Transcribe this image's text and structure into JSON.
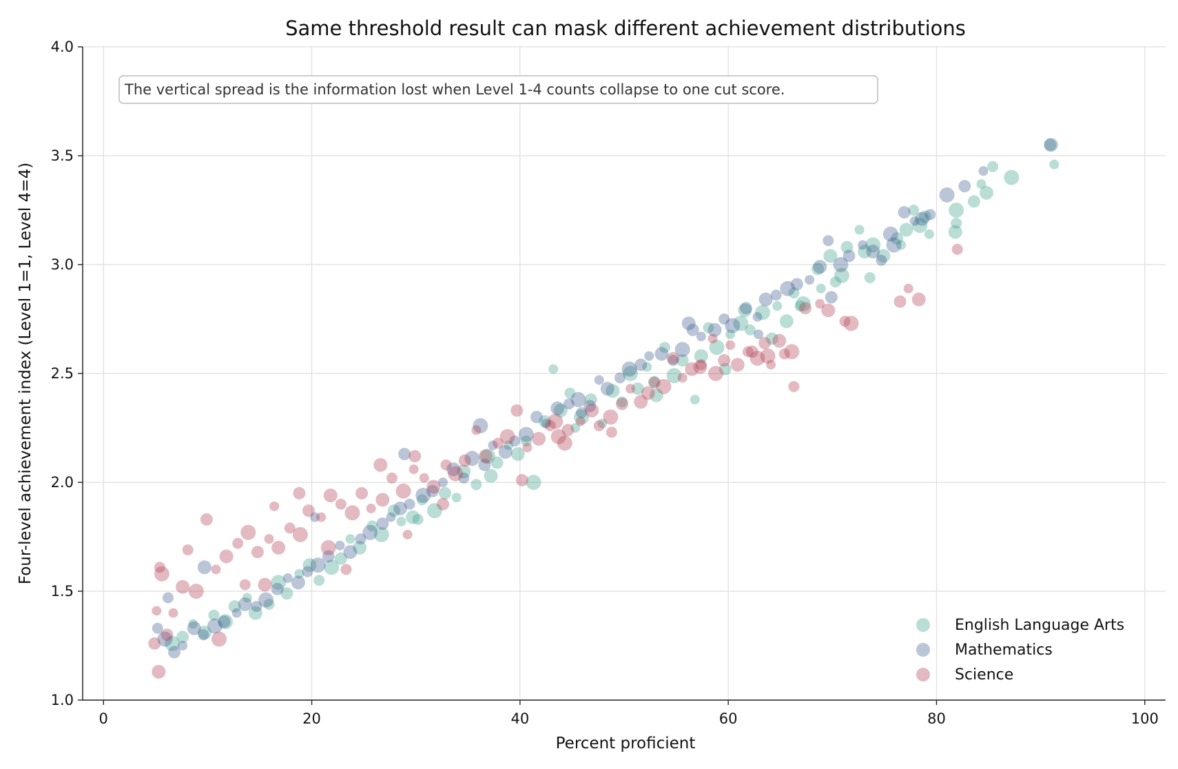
{
  "chart_data": {
    "type": "scatter",
    "title": "Same threshold result can mask different achievement distributions",
    "xlabel": "Percent proficient",
    "ylabel": "Four-level achievement index (Level 1=1, Level 4=4)",
    "xlim": [
      -2,
      102
    ],
    "ylim": [
      1.0,
      4.0
    ],
    "xticks": [
      0,
      20,
      40,
      60,
      80,
      100
    ],
    "yticks": [
      1.0,
      1.5,
      2.0,
      2.5,
      3.0,
      3.5,
      4.0
    ],
    "xtick_labels": [
      "0",
      "20",
      "40",
      "60",
      "80",
      "100"
    ],
    "ytick_labels": [
      "1.0",
      "1.5",
      "2.0",
      "2.5",
      "3.0",
      "3.5",
      "4.0"
    ],
    "grid": true,
    "legend_position": "bottom-right",
    "annotation": "The vertical spread is the information lost when Level 1-4 counts collapse to one cut score.",
    "series": [
      {
        "name": "English Language Arts",
        "color": "#3a9e8a",
        "points": [
          [
            91.3,
            3.46
          ],
          [
            90.9,
            3.55
          ],
          [
            87.2,
            3.4
          ],
          [
            85.4,
            3.45
          ],
          [
            84.8,
            3.33
          ],
          [
            84.3,
            3.37
          ],
          [
            83.6,
            3.29
          ],
          [
            81.9,
            3.25
          ],
          [
            81.9,
            3.19
          ],
          [
            81.8,
            3.15
          ],
          [
            79.3,
            3.14
          ],
          [
            78.9,
            3.22
          ],
          [
            78.4,
            3.18
          ],
          [
            77.8,
            3.25
          ],
          [
            77.1,
            3.16
          ],
          [
            76.6,
            3.09
          ],
          [
            76.2,
            3.12
          ],
          [
            73.9,
            3.09
          ],
          [
            73.6,
            2.94
          ],
          [
            73.1,
            3.06
          ],
          [
            72.6,
            3.16
          ],
          [
            71.4,
            3.08
          ],
          [
            70.9,
            2.95
          ],
          [
            70.3,
            2.92
          ],
          [
            69.8,
            3.04
          ],
          [
            68.9,
            2.89
          ],
          [
            68.6,
            2.98
          ],
          [
            67.2,
            2.82
          ],
          [
            66.3,
            2.87
          ],
          [
            65.6,
            2.74
          ],
          [
            64.7,
            2.81
          ],
          [
            64.2,
            2.66
          ],
          [
            63.3,
            2.78
          ],
          [
            62.1,
            2.7
          ],
          [
            61.6,
            2.79
          ],
          [
            60.2,
            2.68
          ],
          [
            59.7,
            2.52
          ],
          [
            58.9,
            2.62
          ],
          [
            58.1,
            2.71
          ],
          [
            57.4,
            2.58
          ],
          [
            56.8,
            2.38
          ],
          [
            55.6,
            2.56
          ],
          [
            54.8,
            2.49
          ],
          [
            53.9,
            2.62
          ],
          [
            53.1,
            2.4
          ],
          [
            52.2,
            2.53
          ],
          [
            51.3,
            2.43
          ],
          [
            50.6,
            2.5
          ],
          [
            49.8,
            2.37
          ],
          [
            48.9,
            2.42
          ],
          [
            47.9,
            2.27
          ],
          [
            46.8,
            2.38
          ],
          [
            45.9,
            2.3
          ],
          [
            44.8,
            2.41
          ],
          [
            43.9,
            2.33
          ],
          [
            43.2,
            2.52
          ],
          [
            42.4,
            2.28
          ],
          [
            41.3,
            2.0
          ],
          [
            40.6,
            2.19
          ],
          [
            39.8,
            2.13
          ],
          [
            38.9,
            2.17
          ],
          [
            37.8,
            2.09
          ],
          [
            36.9,
            2.12
          ],
          [
            35.8,
            1.99
          ],
          [
            34.6,
            2.05
          ],
          [
            33.9,
            1.93
          ],
          [
            32.8,
            1.95
          ],
          [
            31.8,
            1.87
          ],
          [
            30.6,
            1.92
          ],
          [
            29.7,
            1.84
          ],
          [
            28.6,
            1.82
          ],
          [
            27.9,
            1.87
          ],
          [
            26.7,
            1.76
          ],
          [
            25.8,
            1.8
          ],
          [
            24.6,
            1.7
          ],
          [
            23.7,
            1.74
          ],
          [
            22.8,
            1.65
          ],
          [
            21.9,
            1.61
          ],
          [
            20.7,
            1.55
          ],
          [
            19.8,
            1.62
          ],
          [
            18.8,
            1.58
          ],
          [
            17.6,
            1.49
          ],
          [
            16.8,
            1.54
          ],
          [
            15.9,
            1.44
          ],
          [
            14.6,
            1.4
          ],
          [
            13.8,
            1.47
          ],
          [
            12.6,
            1.43
          ],
          [
            11.7,
            1.36
          ],
          [
            10.6,
            1.39
          ],
          [
            9.7,
            1.31
          ],
          [
            8.6,
            1.35
          ],
          [
            7.6,
            1.29
          ],
          [
            6.6,
            1.26
          ],
          [
            30.2,
            1.83
          ],
          [
            37.2,
            2.03
          ],
          [
            45.3,
            2.25
          ],
          [
            52.9,
            2.46
          ],
          [
            61.2,
            2.73
          ],
          [
            66.9,
            2.81
          ],
          [
            74.9,
            3.04
          ]
        ]
      },
      {
        "name": "Mathematics",
        "color": "#3a5a8c",
        "points": [
          [
            91.0,
            3.55
          ],
          [
            84.5,
            3.43
          ],
          [
            82.7,
            3.36
          ],
          [
            81.0,
            3.32
          ],
          [
            79.4,
            3.23
          ],
          [
            78.6,
            3.21
          ],
          [
            77.9,
            3.2
          ],
          [
            76.9,
            3.24
          ],
          [
            75.6,
            3.14
          ],
          [
            74.7,
            3.02
          ],
          [
            73.9,
            3.06
          ],
          [
            72.9,
            3.09
          ],
          [
            71.6,
            3.04
          ],
          [
            70.8,
            3.0
          ],
          [
            69.6,
            3.11
          ],
          [
            68.8,
            2.99
          ],
          [
            67.8,
            2.93
          ],
          [
            66.6,
            2.91
          ],
          [
            65.7,
            2.89
          ],
          [
            64.6,
            2.86
          ],
          [
            63.6,
            2.84
          ],
          [
            62.8,
            2.76
          ],
          [
            61.7,
            2.8
          ],
          [
            60.4,
            2.72
          ],
          [
            59.6,
            2.75
          ],
          [
            58.7,
            2.7
          ],
          [
            57.4,
            2.67
          ],
          [
            56.6,
            2.7
          ],
          [
            55.6,
            2.61
          ],
          [
            54.7,
            2.56
          ],
          [
            53.6,
            2.59
          ],
          [
            52.4,
            2.58
          ],
          [
            51.6,
            2.54
          ],
          [
            50.5,
            2.52
          ],
          [
            49.6,
            2.48
          ],
          [
            48.4,
            2.43
          ],
          [
            47.6,
            2.47
          ],
          [
            46.7,
            2.35
          ],
          [
            45.6,
            2.38
          ],
          [
            44.7,
            2.36
          ],
          [
            43.6,
            2.34
          ],
          [
            42.5,
            2.27
          ],
          [
            41.6,
            2.3
          ],
          [
            40.6,
            2.22
          ],
          [
            39.5,
            2.19
          ],
          [
            38.6,
            2.14
          ],
          [
            37.4,
            2.17
          ],
          [
            36.6,
            2.08
          ],
          [
            35.4,
            2.11
          ],
          [
            34.6,
            2.02
          ],
          [
            33.6,
            2.06
          ],
          [
            32.6,
            2.0
          ],
          [
            31.6,
            1.96
          ],
          [
            30.7,
            1.94
          ],
          [
            29.4,
            1.9
          ],
          [
            28.5,
            1.88
          ],
          [
            27.6,
            1.84
          ],
          [
            26.8,
            1.81
          ],
          [
            25.6,
            1.77
          ],
          [
            24.7,
            1.74
          ],
          [
            23.7,
            1.68
          ],
          [
            22.7,
            1.71
          ],
          [
            21.6,
            1.66
          ],
          [
            20.6,
            1.62
          ],
          [
            19.6,
            1.59
          ],
          [
            18.7,
            1.54
          ],
          [
            17.7,
            1.56
          ],
          [
            16.7,
            1.51
          ],
          [
            15.6,
            1.46
          ],
          [
            14.7,
            1.43
          ],
          [
            13.6,
            1.44
          ],
          [
            12.8,
            1.4
          ],
          [
            11.6,
            1.36
          ],
          [
            10.7,
            1.34
          ],
          [
            9.6,
            1.3
          ],
          [
            8.7,
            1.33
          ],
          [
            7.6,
            1.25
          ],
          [
            6.8,
            1.22
          ],
          [
            5.9,
            1.28
          ],
          [
            5.2,
            1.33
          ],
          [
            9.7,
            1.61
          ],
          [
            20.3,
            1.84
          ],
          [
            28.9,
            2.13
          ],
          [
            36.2,
            2.26
          ],
          [
            45.9,
            2.32
          ],
          [
            56.2,
            2.73
          ],
          [
            62.9,
            2.68
          ],
          [
            69.9,
            2.85
          ],
          [
            75.9,
            3.09
          ],
          [
            6.2,
            1.47
          ]
        ]
      },
      {
        "name": "Science",
        "color": "#b03a4e",
        "points": [
          [
            82.0,
            3.07
          ],
          [
            78.3,
            2.84
          ],
          [
            77.3,
            2.89
          ],
          [
            76.5,
            2.83
          ],
          [
            71.8,
            2.73
          ],
          [
            71.2,
            2.74
          ],
          [
            69.6,
            2.79
          ],
          [
            68.8,
            2.82
          ],
          [
            67.4,
            2.8
          ],
          [
            66.1,
            2.6
          ],
          [
            65.4,
            2.59
          ],
          [
            64.9,
            2.65
          ],
          [
            64.1,
            2.54
          ],
          [
            63.5,
            2.64
          ],
          [
            62.8,
            2.57
          ],
          [
            61.9,
            2.6
          ],
          [
            60.9,
            2.54
          ],
          [
            60.2,
            2.63
          ],
          [
            59.6,
            2.56
          ],
          [
            58.8,
            2.5
          ],
          [
            57.4,
            2.54
          ],
          [
            56.5,
            2.52
          ],
          [
            55.6,
            2.48
          ],
          [
            54.7,
            2.57
          ],
          [
            53.8,
            2.44
          ],
          [
            52.9,
            2.46
          ],
          [
            51.6,
            2.37
          ],
          [
            50.6,
            2.43
          ],
          [
            49.8,
            2.36
          ],
          [
            48.7,
            2.3
          ],
          [
            47.6,
            2.26
          ],
          [
            46.9,
            2.33
          ],
          [
            45.8,
            2.28
          ],
          [
            44.6,
            2.24
          ],
          [
            43.7,
            2.21
          ],
          [
            42.9,
            2.26
          ],
          [
            41.8,
            2.2
          ],
          [
            40.7,
            2.16
          ],
          [
            39.7,
            2.33
          ],
          [
            38.8,
            2.21
          ],
          [
            37.9,
            2.18
          ],
          [
            36.7,
            2.12
          ],
          [
            35.8,
            2.24
          ],
          [
            34.7,
            2.1
          ],
          [
            33.8,
            2.04
          ],
          [
            32.9,
            2.08
          ],
          [
            31.7,
            1.98
          ],
          [
            30.8,
            2.02
          ],
          [
            29.9,
            2.12
          ],
          [
            28.8,
            1.96
          ],
          [
            27.7,
            2.02
          ],
          [
            26.8,
            1.92
          ],
          [
            25.7,
            1.88
          ],
          [
            24.8,
            1.95
          ],
          [
            23.9,
            1.86
          ],
          [
            22.8,
            1.9
          ],
          [
            21.8,
            1.94
          ],
          [
            20.9,
            1.84
          ],
          [
            19.7,
            1.87
          ],
          [
            18.9,
            1.76
          ],
          [
            17.9,
            1.79
          ],
          [
            16.8,
            1.7
          ],
          [
            15.9,
            1.74
          ],
          [
            14.8,
            1.68
          ],
          [
            13.9,
            1.77
          ],
          [
            12.9,
            1.72
          ],
          [
            11.8,
            1.66
          ],
          [
            10.8,
            1.6
          ],
          [
            9.9,
            1.83
          ],
          [
            8.9,
            1.5
          ],
          [
            8.1,
            1.69
          ],
          [
            7.6,
            1.52
          ],
          [
            6.7,
            1.4
          ],
          [
            6.1,
            1.3
          ],
          [
            5.6,
            1.58
          ],
          [
            5.4,
            1.61
          ],
          [
            5.3,
            1.13
          ],
          [
            5.1,
            1.41
          ],
          [
            4.9,
            1.26
          ],
          [
            11.1,
            1.28
          ],
          [
            13.6,
            1.53
          ],
          [
            15.5,
            1.53
          ],
          [
            16.4,
            1.89
          ],
          [
            18.8,
            1.95
          ],
          [
            21.6,
            1.7
          ],
          [
            23.3,
            1.6
          ],
          [
            26.6,
            2.08
          ],
          [
            29.2,
            1.76
          ],
          [
            40.2,
            2.01
          ],
          [
            44.3,
            2.18
          ],
          [
            48.8,
            2.23
          ],
          [
            52.3,
            2.41
          ],
          [
            58.5,
            2.66
          ],
          [
            62.3,
            2.6
          ],
          [
            63.8,
            2.58
          ],
          [
            66.3,
            2.44
          ],
          [
            57.3,
            2.53
          ],
          [
            29.8,
            2.06
          ],
          [
            32.6,
            1.9
          ],
          [
            43.4,
            2.28
          ]
        ]
      }
    ]
  }
}
